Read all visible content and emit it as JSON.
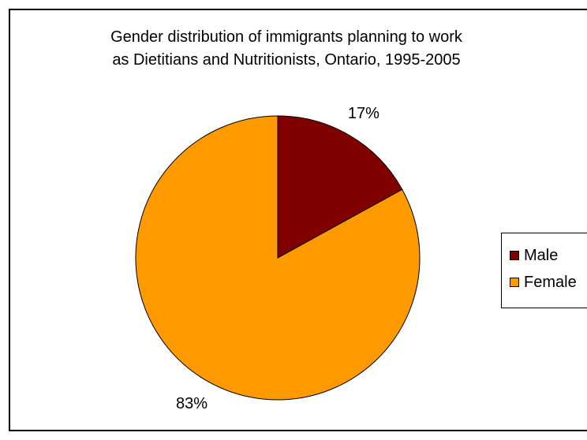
{
  "chart_data": {
    "type": "pie",
    "title_lines": [
      "Gender distribution of immigrants planning to work",
      "as Dietitians and Nutritionists, Ontario, 1995-2005"
    ],
    "categories": [
      "Male",
      "Female"
    ],
    "values": [
      17,
      83
    ],
    "data_labels": [
      "17%",
      "83%"
    ],
    "colors": [
      "#800000",
      "#FF9900"
    ],
    "legend_position": "right"
  }
}
